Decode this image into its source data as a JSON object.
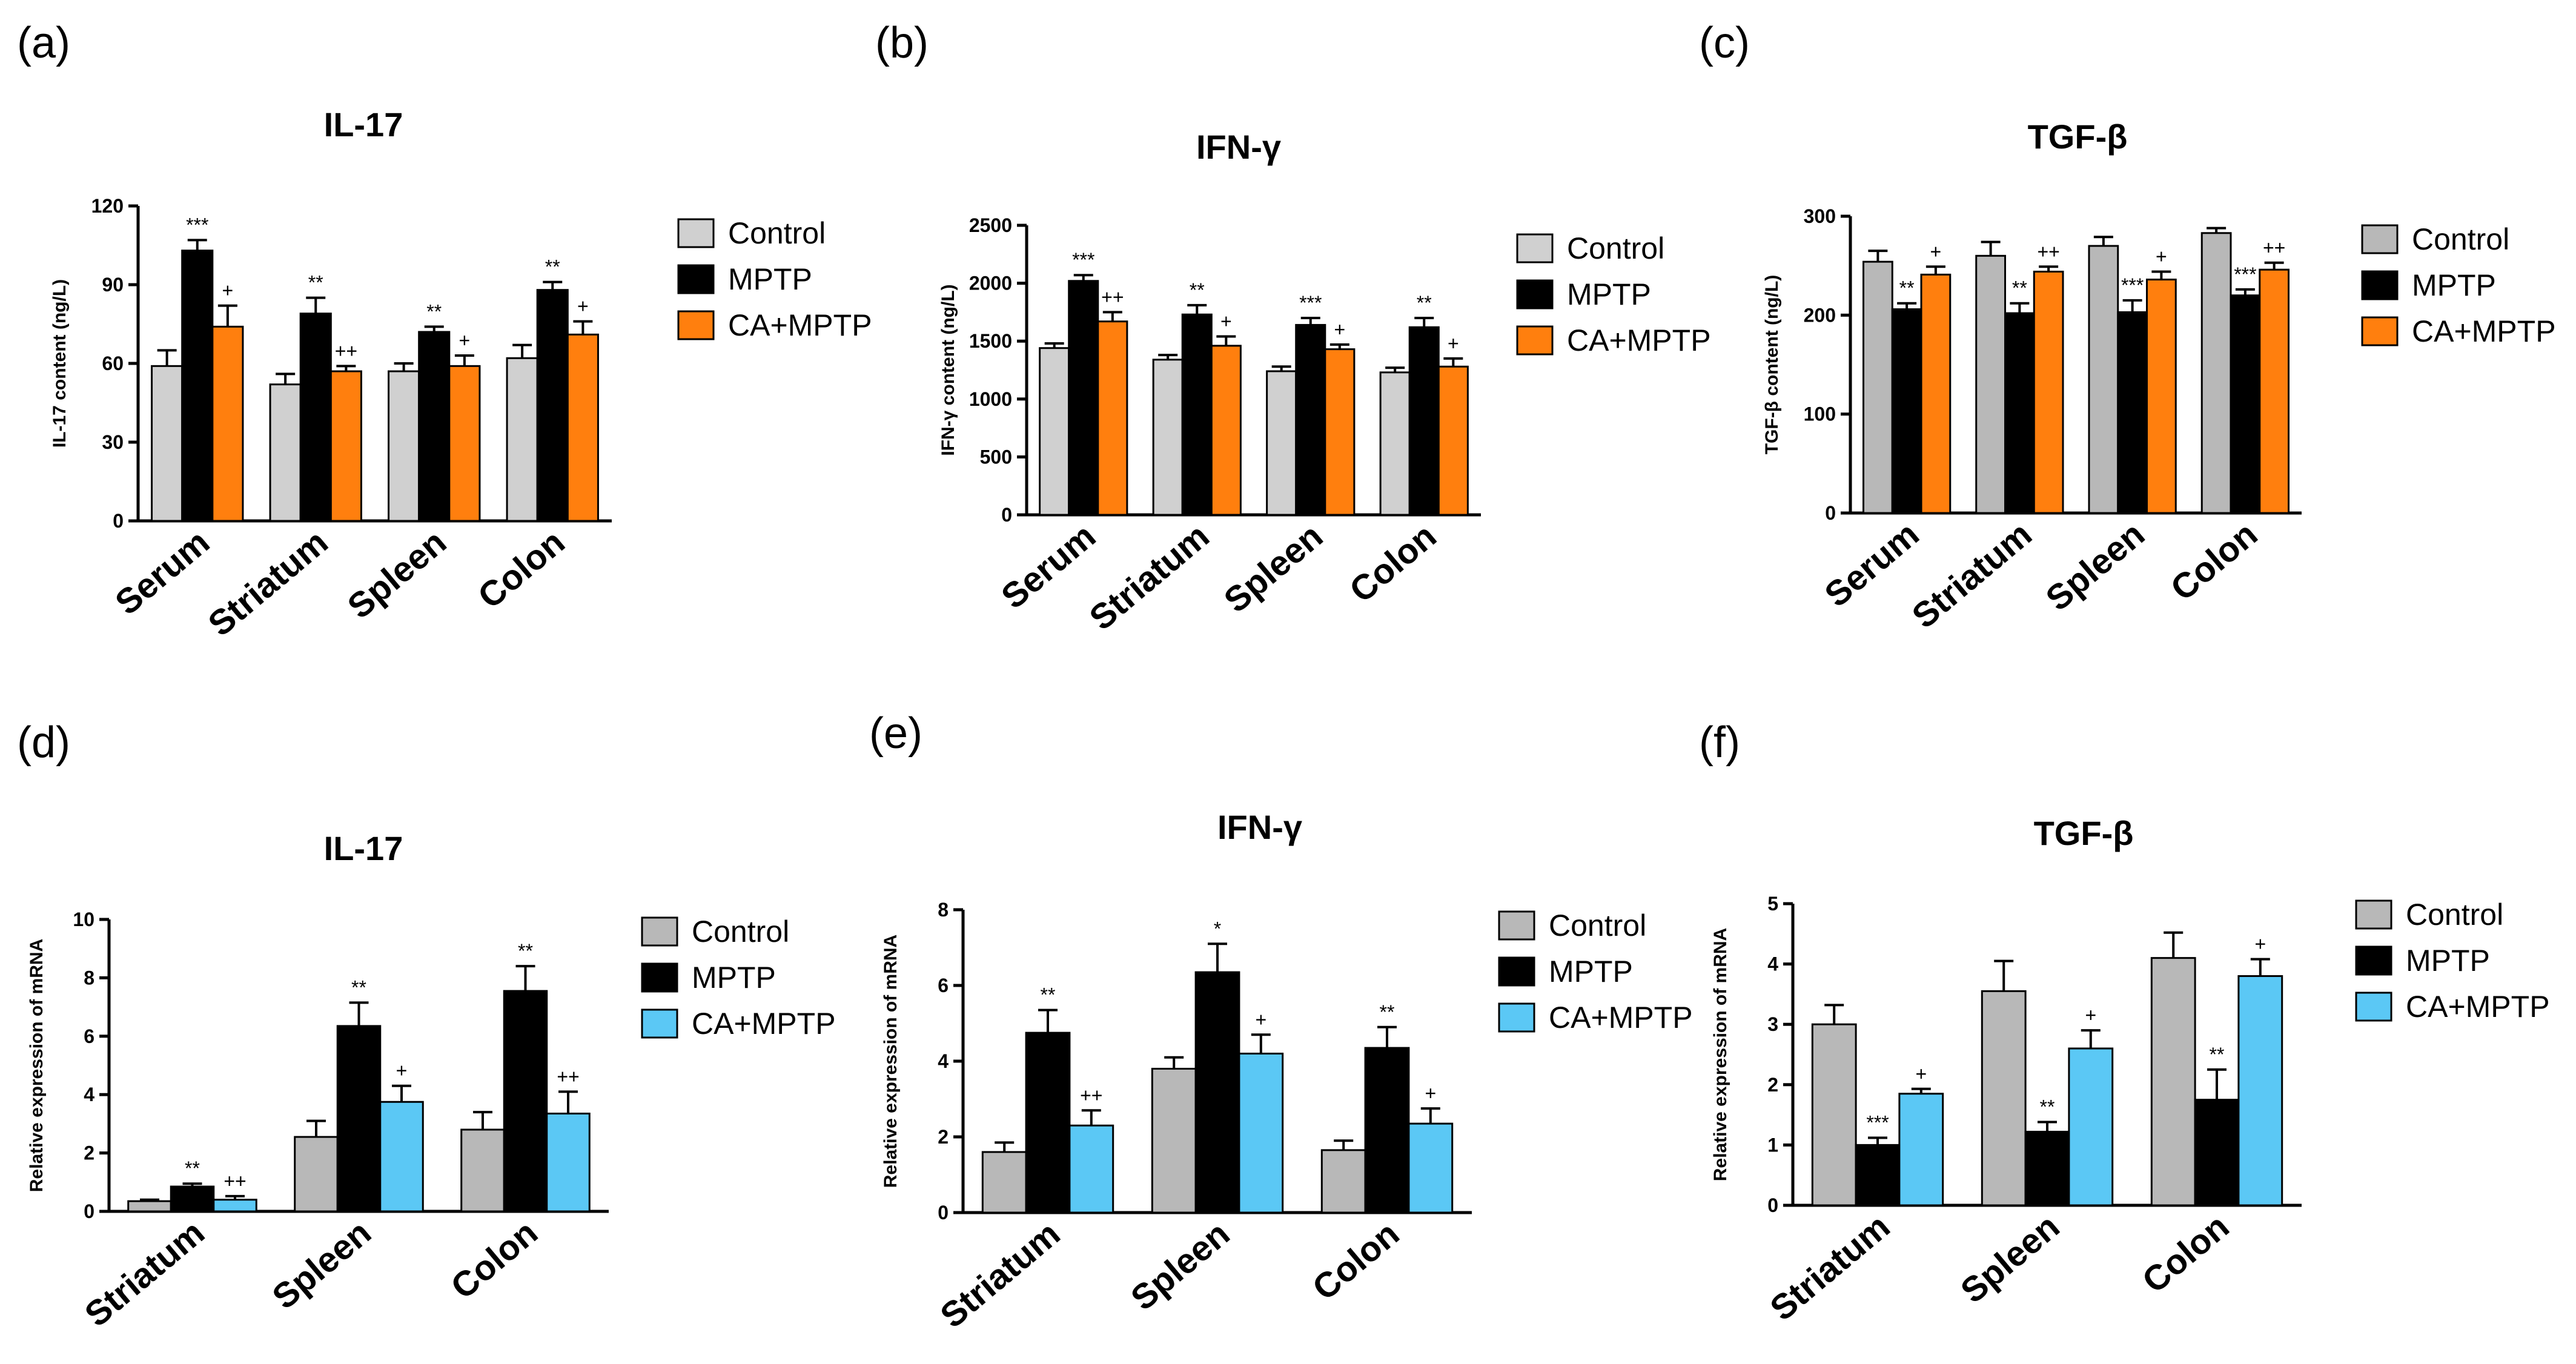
{
  "figure": {
    "colors": {
      "control": "#d0d0d0",
      "mptp": "#000000",
      "ca_orange": "#ff7f0e",
      "ca_blue": "#5bc8f5",
      "axis": "#000000"
    }
  },
  "chart_data": [
    {
      "panel": "(a)",
      "type": "bar",
      "title": "IL-17",
      "ylabel": "IL-17 content (ng/L)",
      "xlabel": "",
      "ylim": [
        0,
        120
      ],
      "yticks": [
        0,
        30,
        60,
        90,
        120
      ],
      "categories": [
        "Serum",
        "Striatum",
        "Spleen",
        "Colon"
      ],
      "legend_position": "right",
      "series": [
        {
          "name": "Control",
          "color": "#d0d0d0",
          "values": [
            59,
            52,
            57,
            62
          ],
          "errors": [
            6,
            4,
            3,
            5
          ],
          "labels": [
            "",
            "",
            "",
            ""
          ]
        },
        {
          "name": "MPTP",
          "color": "#000000",
          "values": [
            103,
            79,
            72,
            88
          ],
          "errors": [
            4,
            6,
            2,
            3
          ],
          "labels": [
            "***",
            "**",
            "**",
            "**"
          ]
        },
        {
          "name": "CA+MPTP",
          "color": "#ff7f0e",
          "values": [
            74,
            57,
            59,
            71
          ],
          "errors": [
            8,
            2,
            4,
            5
          ],
          "labels": [
            "+",
            "++",
            "+",
            "+"
          ]
        }
      ]
    },
    {
      "panel": "(b)",
      "type": "bar",
      "title": "IFN-γ",
      "ylabel": "IFN-γ content (ng/L)",
      "xlabel": "",
      "ylim": [
        0,
        2500
      ],
      "yticks": [
        0,
        500,
        1000,
        1500,
        2000,
        2500
      ],
      "categories": [
        "Serum",
        "Striatum",
        "Spleen",
        "Colon"
      ],
      "legend_position": "right",
      "series": [
        {
          "name": "Control",
          "color": "#d0d0d0",
          "values": [
            1440,
            1340,
            1240,
            1230
          ],
          "errors": [
            40,
            40,
            40,
            40
          ],
          "labels": [
            "",
            "",
            "",
            ""
          ]
        },
        {
          "name": "MPTP",
          "color": "#000000",
          "values": [
            2020,
            1730,
            1640,
            1620
          ],
          "errors": [
            50,
            80,
            60,
            80
          ],
          "labels": [
            "***",
            "**",
            "***",
            "**"
          ]
        },
        {
          "name": "CA+MPTP",
          "color": "#ff7f0e",
          "values": [
            1670,
            1460,
            1430,
            1280
          ],
          "errors": [
            80,
            80,
            40,
            70
          ],
          "labels": [
            "++",
            "+",
            "+",
            "+"
          ]
        }
      ]
    },
    {
      "panel": "(c)",
      "type": "bar",
      "title": "TGF-β",
      "ylabel": "TGF-β content (ng/L)",
      "xlabel": "",
      "ylim": [
        0,
        300
      ],
      "yticks": [
        0,
        100,
        200,
        300
      ],
      "categories": [
        "Serum",
        "Striatum",
        "Spleen",
        "Colon"
      ],
      "legend_position": "right",
      "series": [
        {
          "name": "Control",
          "color": "#b8b8b8",
          "values": [
            254,
            260,
            270,
            283
          ],
          "errors": [
            11,
            14,
            9,
            5
          ],
          "labels": [
            "",
            "",
            "",
            ""
          ]
        },
        {
          "name": "MPTP",
          "color": "#000000",
          "values": [
            206,
            202,
            203,
            220
          ],
          "errors": [
            6,
            10,
            12,
            6
          ],
          "labels": [
            "**",
            "**",
            "***",
            "***"
          ]
        },
        {
          "name": "CA+MPTP",
          "color": "#ff7f0e",
          "values": [
            241,
            244,
            236,
            246
          ],
          "errors": [
            8,
            5,
            8,
            7
          ],
          "labels": [
            "+",
            "++",
            "+",
            "++"
          ]
        }
      ]
    },
    {
      "panel": "(d)",
      "type": "bar",
      "title": "IL-17",
      "ylabel": "Relative expression of mRNA",
      "xlabel": "",
      "ylim": [
        0,
        10
      ],
      "yticks": [
        0,
        2,
        4,
        6,
        8,
        10
      ],
      "categories": [
        "Striatum",
        "Spleen",
        "Colon"
      ],
      "legend_position": "right",
      "series": [
        {
          "name": "Control",
          "color": "#b8b8b8",
          "values": [
            0.35,
            2.55,
            2.8
          ],
          "errors": [
            0.05,
            0.55,
            0.6
          ],
          "labels": [
            "",
            "",
            ""
          ]
        },
        {
          "name": "MPTP",
          "color": "#000000",
          "values": [
            0.85,
            6.35,
            7.55
          ],
          "errors": [
            0.1,
            0.8,
            0.85
          ],
          "labels": [
            "**",
            "**",
            "**"
          ]
        },
        {
          "name": "CA+MPTP",
          "color": "#5bc8f5",
          "values": [
            0.4,
            3.75,
            3.35
          ],
          "errors": [
            0.12,
            0.55,
            0.75
          ],
          "labels": [
            "++",
            "+",
            "++"
          ]
        }
      ]
    },
    {
      "panel": "(e)",
      "type": "bar",
      "title": "IFN-γ",
      "ylabel": "Relative expression of mRNA",
      "xlabel": "",
      "ylim": [
        0,
        8
      ],
      "yticks": [
        0,
        2,
        4,
        6,
        8
      ],
      "categories": [
        "Striatum",
        "Spleen",
        "Colon"
      ],
      "legend_position": "right",
      "series": [
        {
          "name": "Control",
          "color": "#b8b8b8",
          "values": [
            1.6,
            3.8,
            1.65
          ],
          "errors": [
            0.25,
            0.3,
            0.25
          ],
          "labels": [
            "",
            "",
            ""
          ]
        },
        {
          "name": "MPTP",
          "color": "#000000",
          "values": [
            4.75,
            6.35,
            4.35
          ],
          "errors": [
            0.6,
            0.75,
            0.55
          ],
          "labels": [
            "**",
            "*",
            "**"
          ]
        },
        {
          "name": "CA+MPTP",
          "color": "#5bc8f5",
          "values": [
            2.3,
            4.2,
            2.35
          ],
          "errors": [
            0.4,
            0.5,
            0.4
          ],
          "labels": [
            "++",
            "+",
            "+"
          ]
        }
      ]
    },
    {
      "panel": "(f)",
      "type": "bar",
      "title": "TGF-β",
      "ylabel": "Relative expression of mRNA",
      "xlabel": "",
      "ylim": [
        0,
        5
      ],
      "yticks": [
        0,
        1,
        2,
        3,
        4,
        5
      ],
      "categories": [
        "Striatum",
        "Spleen",
        "Colon"
      ],
      "legend_position": "right",
      "series": [
        {
          "name": "Control",
          "color": "#b8b8b8",
          "values": [
            3.0,
            3.55,
            4.1
          ],
          "errors": [
            0.32,
            0.5,
            0.42
          ],
          "labels": [
            "",
            "",
            ""
          ]
        },
        {
          "name": "MPTP",
          "color": "#000000",
          "values": [
            1.0,
            1.22,
            1.75
          ],
          "errors": [
            0.12,
            0.16,
            0.5
          ],
          "labels": [
            "***",
            "**",
            "**"
          ]
        },
        {
          "name": "CA+MPTP",
          "color": "#5bc8f5",
          "values": [
            1.85,
            2.6,
            3.8
          ],
          "errors": [
            0.08,
            0.3,
            0.28
          ],
          "labels": [
            "+",
            "+",
            "+"
          ]
        }
      ]
    }
  ]
}
